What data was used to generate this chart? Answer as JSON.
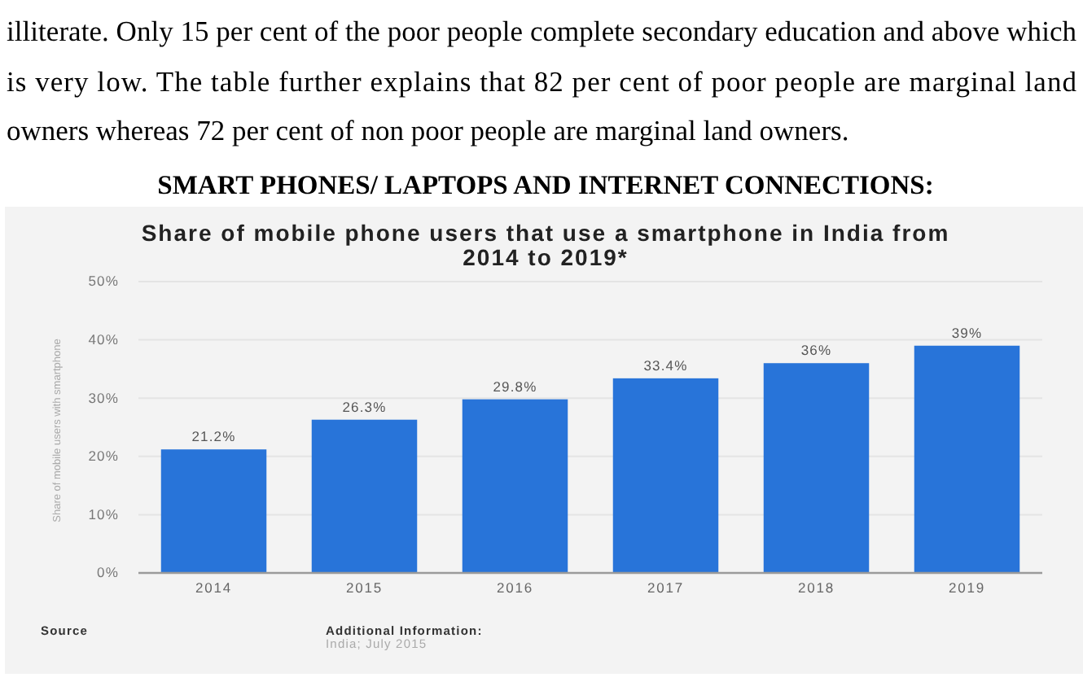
{
  "chart_data": {
    "type": "bar",
    "title": "Share of mobile phone users that use a smartphone in India from 2014 to 2019*",
    "ylabel": "Share of mobile users with smartphone",
    "categories": [
      "2014",
      "2015",
      "2016",
      "2017",
      "2018",
      "2019"
    ],
    "values": [
      21.2,
      26.3,
      29.8,
      33.4,
      36,
      39
    ],
    "value_labels": [
      "21.2%",
      "26.3%",
      "29.8%",
      "33.4%",
      "36%",
      "39%"
    ],
    "color": "#2874d9",
    "ylim": [
      0,
      50
    ],
    "yticks": [
      {
        "value": 0,
        "label": "0%"
      },
      {
        "value": 10,
        "label": "10%"
      },
      {
        "value": 20,
        "label": "20%"
      },
      {
        "value": 30,
        "label": "30%"
      },
      {
        "value": 40,
        "label": "40%"
      },
      {
        "value": 50,
        "label": "50%"
      }
    ],
    "grid": "y",
    "annotations": [
      "illiterate. Only 15 per cent of the poor people complete secondary education and above which",
      "is very low. The table further explains that 82 per cent of poor people are marginal land",
      "owners whereas 72 per cent of non poor people are marginal land owners.",
      "SMART PHONES/ LAPTOPS AND INTERNET CONNECTIONS:",
      "Source",
      "Additional Information:",
      "India; July 2015"
    ]
  }
}
